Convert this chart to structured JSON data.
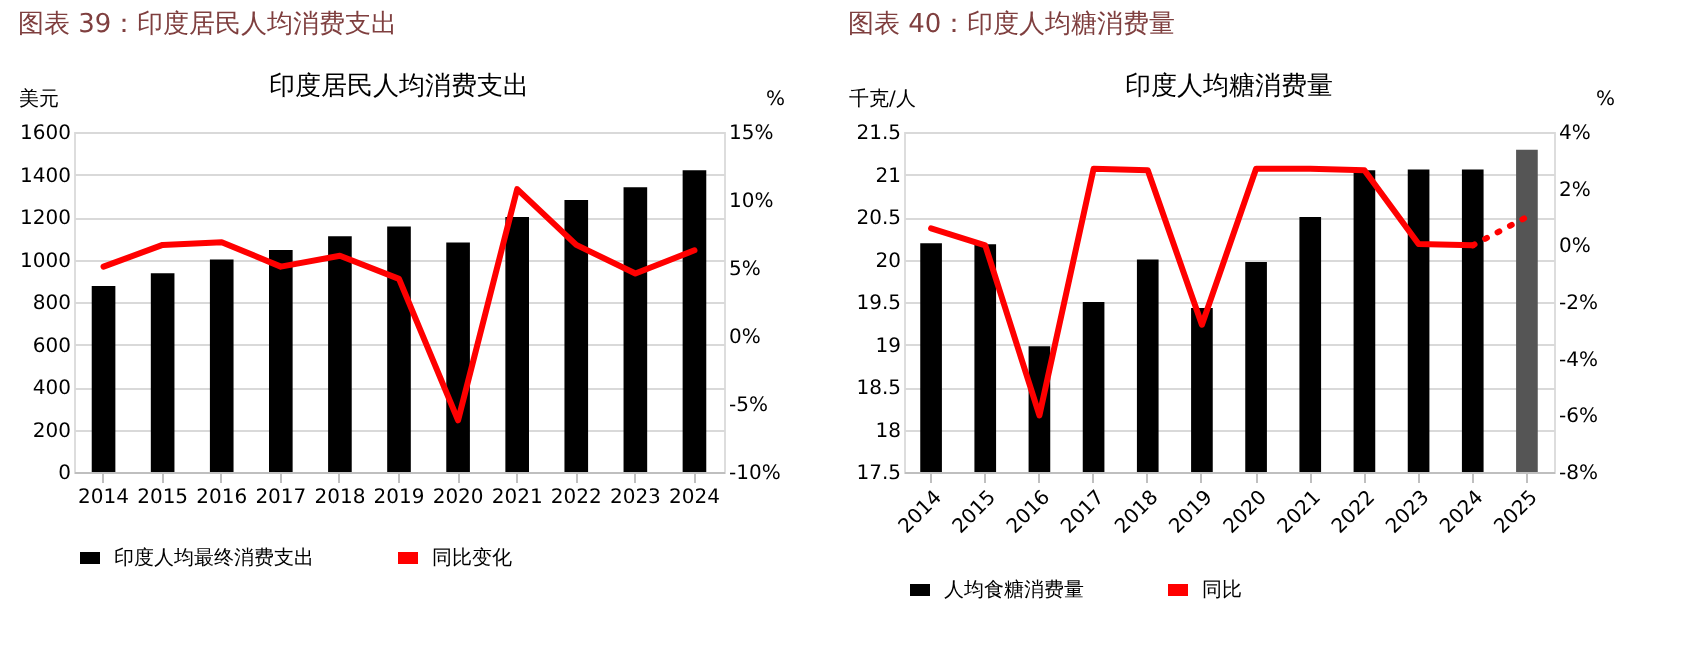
{
  "chart_data": [
    {
      "type": "bar",
      "title": "图表 39：印度居民人均消费支出",
      "subtitle": "印度居民人均消费支出",
      "ylabel": "美元",
      "y2label": "%",
      "categories": [
        "2014",
        "2015",
        "2016",
        "2017",
        "2018",
        "2019",
        "2020",
        "2021",
        "2022",
        "2023",
        "2024"
      ],
      "series": [
        {
          "name": "印度人均最终消费支出",
          "color": "#000000",
          "values": [
            875,
            935,
            1000,
            1045,
            1110,
            1155,
            1080,
            1200,
            1280,
            1340,
            1420
          ]
        },
        {
          "name": "同比变化",
          "type": "line",
          "axis": "y2",
          "color": "#ff0000",
          "values": [
            5.1,
            6.7,
            6.9,
            5.1,
            5.9,
            4.2,
            -6.2,
            10.8,
            6.7,
            4.6,
            6.3
          ]
        }
      ],
      "ylim": [
        0,
        1600
      ],
      "yticks": [
        0,
        200,
        400,
        600,
        800,
        1000,
        1200,
        1400,
        1600
      ],
      "y2lim": [
        -10,
        15
      ],
      "y2ticks": [
        {
          "value": -10,
          "label": "-10%"
        },
        {
          "value": -5,
          "label": "-5%"
        },
        {
          "value": 0,
          "label": "0%"
        },
        {
          "value": 5,
          "label": "5%"
        },
        {
          "value": 10,
          "label": "10%"
        },
        {
          "value": 15,
          "label": "15%"
        }
      ],
      "grid": "y",
      "legend": "bottom"
    },
    {
      "type": "bar",
      "title": "图表 40：印度人均糖消费量",
      "subtitle": "印度人均糖消费量",
      "ylabel": "千克/人",
      "y2label": "%",
      "categories": [
        "2014",
        "2015",
        "2016",
        "2017",
        "2018",
        "2019",
        "2020",
        "2021",
        "2022",
        "2023",
        "2024",
        "2025"
      ],
      "series": [
        {
          "name": "人均食糖消费量",
          "color": "#000000",
          "values": [
            20.19,
            20.18,
            18.98,
            19.5,
            20.0,
            19.43,
            19.97,
            20.5,
            21.05,
            21.06,
            21.06,
            null
          ]
        },
        {
          "color": "#555555",
          "values": [
            null,
            null,
            null,
            null,
            null,
            null,
            null,
            null,
            null,
            null,
            null,
            21.29
          ]
        },
        {
          "name": "同比",
          "type": "line",
          "axis": "y2",
          "color": "#ff0000",
          "values": [
            0.6,
            0.0,
            -6.0,
            2.7,
            2.65,
            -2.8,
            2.7,
            2.7,
            2.65,
            0.05,
            0.0,
            null
          ]
        },
        {
          "type": "line",
          "axis": "y2",
          "color": "#ff0000",
          "line_style": "dotted",
          "values": [
            null,
            null,
            null,
            null,
            null,
            null,
            null,
            null,
            null,
            null,
            0.0,
            1.0
          ]
        }
      ],
      "ylim": [
        17.5,
        21.5
      ],
      "yticks": [
        17.5,
        18,
        18.5,
        19,
        19.5,
        20,
        20.5,
        21,
        21.5
      ],
      "y2lim": [
        -8,
        4
      ],
      "y2ticks": [
        {
          "value": -8,
          "label": "-8%"
        },
        {
          "value": -6,
          "label": "-6%"
        },
        {
          "value": -4,
          "label": "-4%"
        },
        {
          "value": -2,
          "label": "-2%"
        },
        {
          "value": 0,
          "label": "0%"
        },
        {
          "value": 2,
          "label": "2%"
        },
        {
          "value": 4,
          "label": "4%"
        }
      ],
      "grid": "y",
      "legend": "bottom"
    }
  ]
}
